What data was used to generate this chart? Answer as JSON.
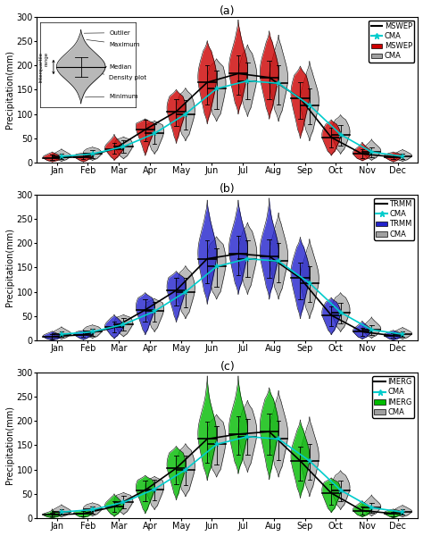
{
  "months": [
    "Jan",
    "Feb",
    "Mar",
    "Apr",
    "May",
    "Jun",
    "Jul",
    "Aug",
    "Sep",
    "Oct",
    "Nov",
    "Dec"
  ],
  "panel_labels": [
    "(a)",
    "(b)",
    "(c)"
  ],
  "ylim": [
    0,
    300
  ],
  "yticks": [
    0,
    50,
    100,
    150,
    200,
    250,
    300
  ],
  "ylabel": "Precipitation(mm)",
  "panels": [
    {
      "product1_name": "MSWEP",
      "product2_name": "CMA",
      "product1_color": "#CC0000",
      "product2_color": "#A0A0A0",
      "line1_color": "#000000",
      "line2_color": "#00CCCC",
      "median1": [
        10,
        12,
        28,
        68,
        105,
        165,
        183,
        175,
        132,
        52,
        18,
        12
      ],
      "median2": [
        13,
        18,
        33,
        60,
        100,
        152,
        168,
        163,
        118,
        58,
        22,
        13
      ],
      "min1": [
        2,
        2,
        5,
        15,
        40,
        80,
        100,
        90,
        50,
        15,
        4,
        2
      ],
      "max1": [
        22,
        20,
        58,
        90,
        150,
        250,
        293,
        270,
        198,
        88,
        42,
        22
      ],
      "min2": [
        3,
        5,
        8,
        18,
        45,
        85,
        95,
        85,
        45,
        18,
        5,
        3
      ],
      "max2": [
        28,
        32,
        53,
        86,
        153,
        213,
        242,
        262,
        208,
        98,
        48,
        27
      ],
      "q1_1": [
        6,
        7,
        18,
        45,
        75,
        120,
        140,
        130,
        90,
        32,
        10,
        7
      ],
      "q3_1": [
        16,
        17,
        40,
        88,
        130,
        200,
        220,
        210,
        165,
        72,
        28,
        17
      ],
      "q1_2": [
        7,
        9,
        20,
        38,
        68,
        110,
        130,
        120,
        80,
        35,
        12,
        7
      ],
      "q3_2": [
        19,
        25,
        47,
        80,
        128,
        190,
        205,
        200,
        152,
        78,
        32,
        19
      ]
    },
    {
      "product1_name": "TRMM",
      "product2_name": "CMA",
      "product1_color": "#2222CC",
      "product2_color": "#A0A0A0",
      "line1_color": "#000000",
      "line2_color": "#00CCCC",
      "median1": [
        8,
        12,
        27,
        63,
        103,
        168,
        178,
        173,
        128,
        52,
        18,
        10
      ],
      "median2": [
        13,
        18,
        33,
        60,
        100,
        152,
        168,
        163,
        118,
        58,
        22,
        13
      ],
      "min1": [
        1,
        2,
        4,
        12,
        38,
        75,
        95,
        85,
        45,
        12,
        3,
        1
      ],
      "max1": [
        19,
        21,
        53,
        98,
        142,
        288,
        288,
        292,
        212,
        88,
        40,
        21
      ],
      "min2": [
        3,
        5,
        8,
        18,
        45,
        85,
        95,
        85,
        45,
        18,
        5,
        3
      ],
      "max2": [
        28,
        32,
        53,
        86,
        153,
        213,
        242,
        262,
        208,
        98,
        48,
        27
      ],
      "q1_1": [
        4,
        7,
        16,
        38,
        72,
        118,
        135,
        128,
        85,
        30,
        9,
        5
      ],
      "q3_1": [
        13,
        17,
        38,
        85,
        128,
        205,
        215,
        208,
        160,
        70,
        26,
        15
      ],
      "q1_2": [
        7,
        9,
        20,
        38,
        68,
        110,
        130,
        120,
        80,
        35,
        12,
        7
      ],
      "q3_2": [
        19,
        25,
        47,
        80,
        128,
        190,
        205,
        200,
        152,
        78,
        32,
        19
      ]
    },
    {
      "product1_name": "IMERG",
      "product2_name": "CMA",
      "product1_color": "#00BB00",
      "product2_color": "#A0A0A0",
      "line1_color": "#000000",
      "line2_color": "#00CCCC",
      "median1": [
        7,
        10,
        24,
        58,
        103,
        163,
        173,
        178,
        118,
        52,
        16,
        10
      ],
      "median2": [
        13,
        18,
        33,
        60,
        100,
        152,
        168,
        163,
        118,
        58,
        22,
        13
      ],
      "min1": [
        1,
        2,
        4,
        10,
        38,
        78,
        92,
        80,
        42,
        12,
        3,
        1
      ],
      "max1": [
        19,
        17,
        50,
        88,
        148,
        292,
        292,
        268,
        202,
        83,
        36,
        19
      ],
      "min2": [
        3,
        5,
        8,
        18,
        45,
        85,
        95,
        85,
        45,
        18,
        5,
        3
      ],
      "max2": [
        28,
        32,
        53,
        86,
        153,
        213,
        242,
        262,
        208,
        98,
        48,
        27
      ],
      "q1_1": [
        4,
        5,
        14,
        35,
        70,
        115,
        130,
        130,
        78,
        28,
        8,
        5
      ],
      "q3_1": [
        11,
        15,
        35,
        78,
        128,
        198,
        210,
        215,
        148,
        70,
        24,
        14
      ],
      "q1_2": [
        7,
        9,
        20,
        38,
        68,
        110,
        130,
        120,
        80,
        35,
        12,
        7
      ],
      "q3_2": [
        19,
        25,
        47,
        80,
        128,
        190,
        205,
        200,
        152,
        78,
        32,
        19
      ]
    }
  ],
  "background_color": "#FFFFFF"
}
